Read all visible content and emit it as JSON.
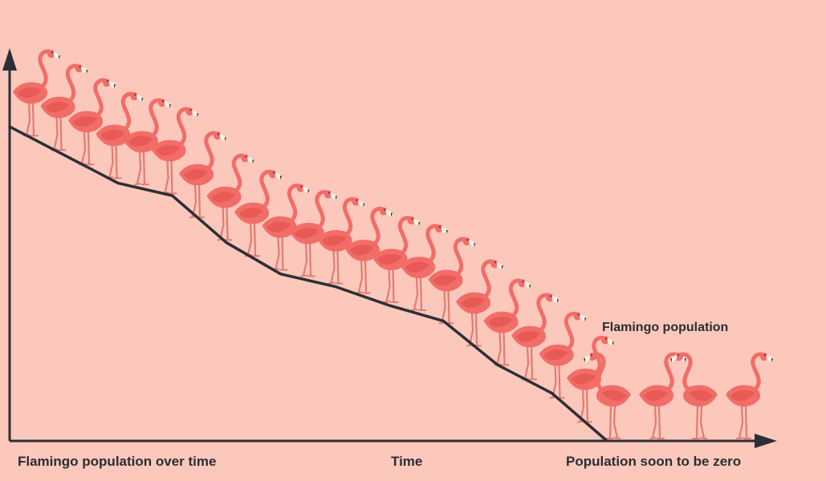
{
  "chart_data": {
    "type": "line",
    "xlabel": "Time",
    "ylabel": "",
    "series": [
      {
        "name": "Flamingo population",
        "values": [
          100,
          91,
          82,
          78,
          63,
          53,
          49,
          43,
          38,
          24,
          15,
          0
        ]
      }
    ],
    "ylim": [
      0,
      100
    ],
    "grid": false,
    "legend": "none",
    "annotations": [
      "Flamingo population over time",
      "Population soon to be zero"
    ],
    "flamingo_count": 25
  },
  "colors": {
    "background": "#fbc8bb",
    "axis": "#2d2f36",
    "line": "#2d2f36",
    "flamingo_body": "#f26d68",
    "flamingo_wing": "#e85a55",
    "flamingo_leg": "#e27b74"
  }
}
